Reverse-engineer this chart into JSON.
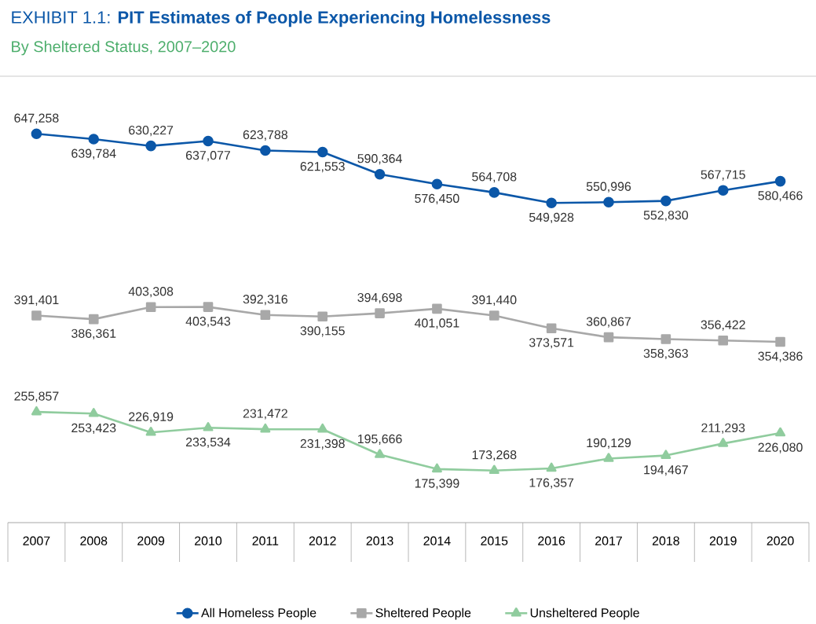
{
  "chart_data": {
    "type": "line",
    "title": "EXHIBIT 1.1: **PIT Estimates of People Experiencing Homelessness**",
    "subtitle": "By Sheltered Status, 2007–2020",
    "categories": [
      "2007",
      "2008",
      "2009",
      "2010",
      "2011",
      "2012",
      "2013",
      "2014",
      "2015",
      "2016",
      "2017",
      "2018",
      "2019",
      "2020"
    ],
    "ylim": [
      100000,
      725000
    ],
    "tick_labels": "x",
    "data_labels": true,
    "legend": "bottom",
    "grid": false,
    "series": [
      {
        "name": "All Homeless People",
        "color": "#0b57a8",
        "marker": "circle",
        "values": [
          647258,
          639784,
          630227,
          637077,
          623788,
          621553,
          590364,
          576450,
          564708,
          549928,
          550996,
          552830,
          567715,
          580466
        ],
        "value_labels": [
          "647,258",
          "639,784",
          "630,227",
          "637,077",
          "623,788",
          "621,553",
          "590,364",
          "576,450",
          "564,708",
          "549,928",
          "550,996",
          "552,830",
          "567,715",
          "580,466"
        ]
      },
      {
        "name": "Sheltered People",
        "color": "#a8a8a8",
        "marker": "square",
        "values": [
          391401,
          386361,
          403308,
          403543,
          392316,
          390155,
          394698,
          401051,
          391440,
          373571,
          360867,
          358363,
          356422,
          354386
        ],
        "value_labels": [
          "391,401",
          "386,361",
          "403,308",
          "403,543",
          "392,316",
          "390,155",
          "394,698",
          "401,051",
          "391,440",
          "373,571",
          "360,867",
          "358,363",
          "356,422",
          "354,386"
        ]
      },
      {
        "name": "Unsheltered People",
        "color": "#90cc9e",
        "marker": "triangle",
        "values": [
          255857,
          253423,
          226919,
          233534,
          231472,
          231398,
          195666,
          175399,
          173268,
          176357,
          190129,
          194467,
          211293,
          226080
        ],
        "value_labels": [
          "255,857",
          "253,423",
          "226,919",
          "233,534",
          "231,472",
          "231,398",
          "195,666",
          "175,399",
          "173,268",
          "176,357",
          "190,129",
          "194,467",
          "211,293",
          "226,080"
        ]
      }
    ]
  }
}
